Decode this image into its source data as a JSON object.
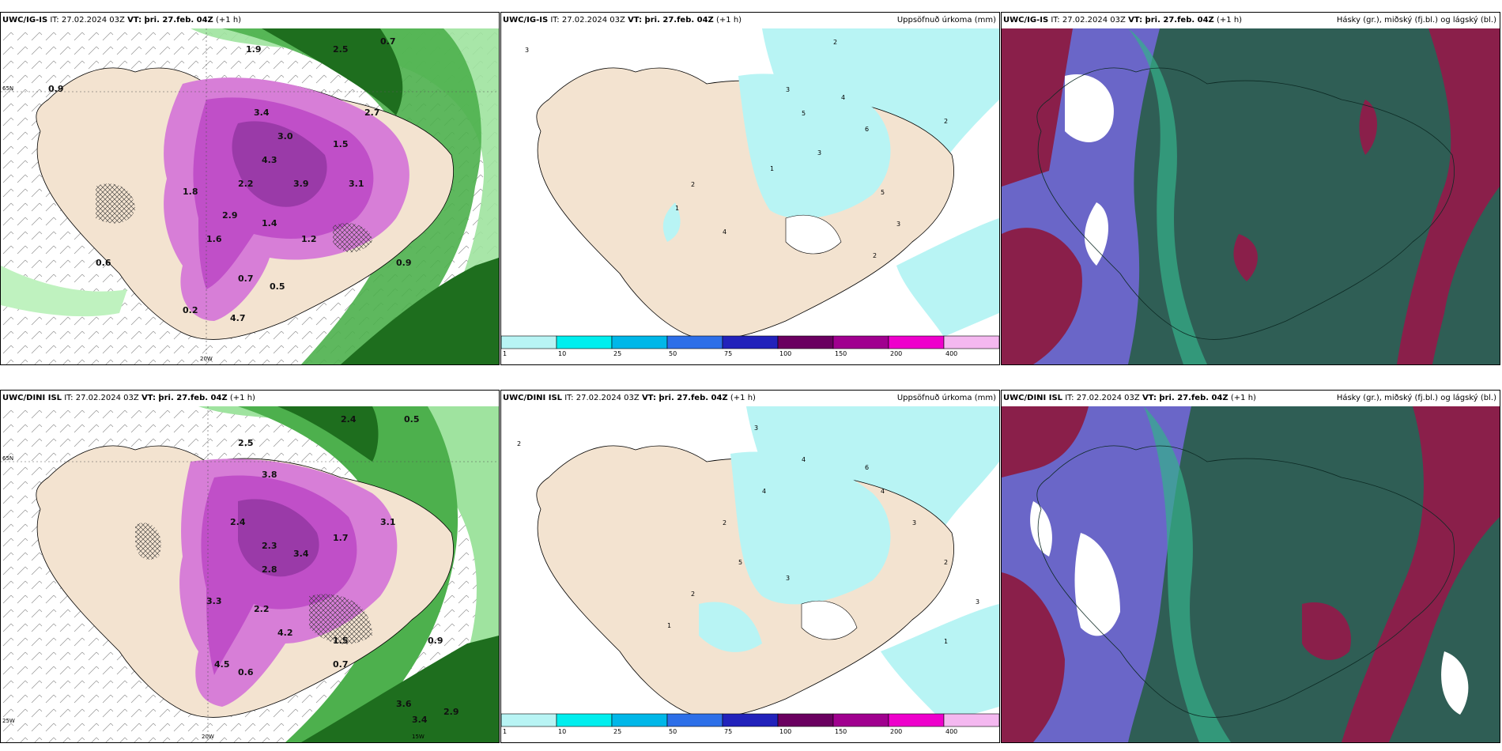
{
  "panels": [
    {
      "model": "UWC/IG-IS",
      "it": "IT: 27.02.2024 03Z",
      "vt": "VT: þri. 27.feb. 04Z",
      "lead": "(+1 h)",
      "right": ""
    },
    {
      "model": "UWC/IG-IS",
      "it": "IT: 27.02.2024 03Z",
      "vt": "VT: þri. 27.feb. 04Z",
      "lead": "(+1 h)",
      "right": "Uppsöfnuð úrkoma (mm)"
    },
    {
      "model": "UWC/IG-IS",
      "it": "IT: 27.02.2024 03Z",
      "vt": "VT: þri. 27.feb. 04Z",
      "lead": "(+1 h)",
      "right": "Hásky (gr.), miðský (fj.bl.) og lágský (bl.)"
    },
    {
      "model": "UWC/DINI ISL",
      "it": "IT: 27.02.2024 03Z",
      "vt": "VT: þri. 27.feb. 04Z",
      "lead": "(+1 h)",
      "right": ""
    },
    {
      "model": "UWC/DINI ISL",
      "it": "IT: 27.02.2024 03Z",
      "vt": "VT: þri. 27.feb. 04Z",
      "lead": "(+1 h)",
      "right": "Uppsöfnuð úrkoma (mm)"
    },
    {
      "model": "UWC/DINI ISL",
      "it": "IT: 27.02.2024 03Z",
      "vt": "VT: þri. 27.feb. 04Z",
      "lead": "(+1 h)",
      "right": "Hásky (gr.), miðský (fj.bl.) og lágský (bl.)"
    }
  ],
  "axes": {
    "lon": "20W",
    "lon2": "15W",
    "lat": "65N",
    "lon_left": "25W"
  },
  "legend": {
    "ticks": [
      "1",
      "10",
      "25",
      "50",
      "75",
      "100",
      "150",
      "200",
      "400"
    ],
    "colors": [
      "#b8f4f4",
      "#00eeee",
      "#00b7e8",
      "#2d6fe8",
      "#2222bb",
      "#6a0060",
      "#a0008f",
      "#ee00cc",
      "#f4b8f0"
    ]
  },
  "precip_labels_top": [
    "0.7",
    "1.9",
    "2.5",
    "0.9",
    "3.4",
    "2.7",
    "3.0",
    "1.5",
    "4.3",
    "2.2",
    "3.9",
    "3.1",
    "1.8",
    "2.9",
    "1.4",
    "1.6",
    "0.6",
    "0.7",
    "0.5",
    "0.9",
    "4.7",
    "0.2",
    "1.2"
  ],
  "precip_labels_bot": [
    "2.4",
    "0.5",
    "2.5",
    "3.8",
    "2.4",
    "2.3",
    "3.4",
    "2.8",
    "1.7",
    "3.1",
    "3.3",
    "2.2",
    "4.2",
    "1.5",
    "0.7",
    "0.6",
    "0.9",
    "3.6",
    "4.5",
    "2.9",
    "3.4"
  ],
  "accum_labels_top": [
    "3",
    "2",
    "3",
    "4",
    "5",
    "6",
    "3",
    "1",
    "2",
    "1",
    "4",
    "2",
    "5",
    "3",
    "2"
  ],
  "accum_labels_bot": [
    "2",
    "3",
    "4",
    "6",
    "4",
    "2",
    "5",
    "3",
    "2",
    "1",
    "4",
    "3",
    "2",
    "3",
    "1"
  ]
}
